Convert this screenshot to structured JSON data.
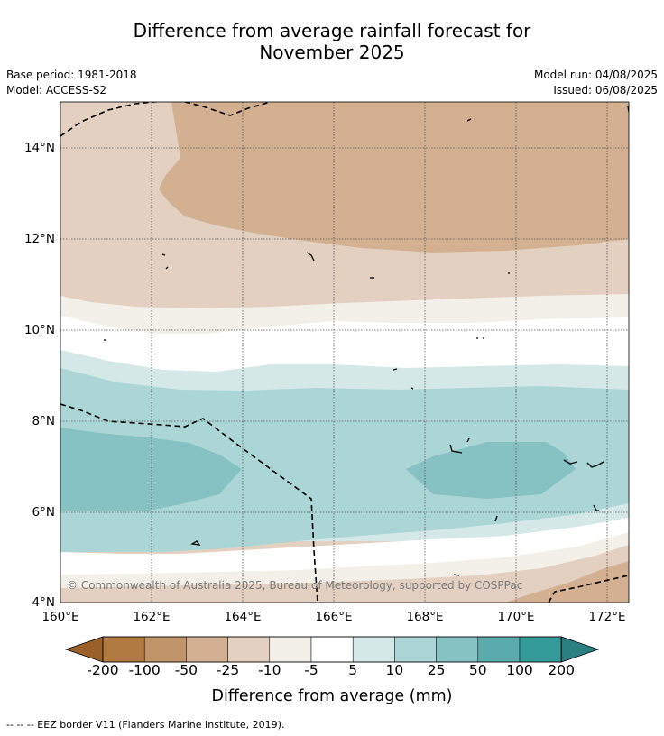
{
  "title_line1": "Difference from average rainfall forecast for",
  "title_line2": "November 2025",
  "base_period": "Base period: 1981-2018",
  "model": "Model: ACCESS-S2",
  "model_run": "Model run: 04/08/2025",
  "issued": "Issued: 06/08/2025",
  "lat_ticks": [
    "14°N",
    "12°N",
    "10°N",
    "8°N",
    "6°N",
    "4°N"
  ],
  "lon_ticks": [
    "160°E",
    "162°E",
    "164°E",
    "166°E",
    "168°E",
    "170°E",
    "172°E"
  ],
  "copyright": "© Commonwealth of Australia 2025, Bureau of Meteorology, supported by COSPPac",
  "colorbar": {
    "labels": [
      "-200",
      "-100",
      "-50",
      "-25",
      "-10",
      "-5",
      "5",
      "10",
      "25",
      "50",
      "100",
      "200"
    ],
    "colors": [
      "#9b5f2a",
      "#b07a40",
      "#c19469",
      "#d2b091",
      "#e3d0c0",
      "#f3efe9",
      "#ffffff",
      "#d4e8e7",
      "#acd6d6",
      "#86c2c3",
      "#5aabad",
      "#359a9a",
      "#2a7f80"
    ],
    "title": "Difference from average (mm)"
  },
  "footnote": "-- -- -- EEZ border V11 (Flanders Marine Institute, 2019).",
  "map_data": {
    "lon_range": [
      160,
      172.5
    ],
    "lat_range": [
      4,
      15
    ],
    "zones": [
      {
        "band": "-25 to -10",
        "color": "#e3d0c0"
      },
      {
        "band": "-50 to -25",
        "color": "#d2b091"
      },
      {
        "band": "-10 to -5",
        "color": "#f3efe9"
      },
      {
        "band": "-5 to 5",
        "color": "#ffffff"
      },
      {
        "band": "5 to 10",
        "color": "#d4e8e7"
      },
      {
        "band": "10 to 25",
        "color": "#acd6d6"
      },
      {
        "band": "25 to 50",
        "color": "#86c2c3"
      }
    ]
  }
}
